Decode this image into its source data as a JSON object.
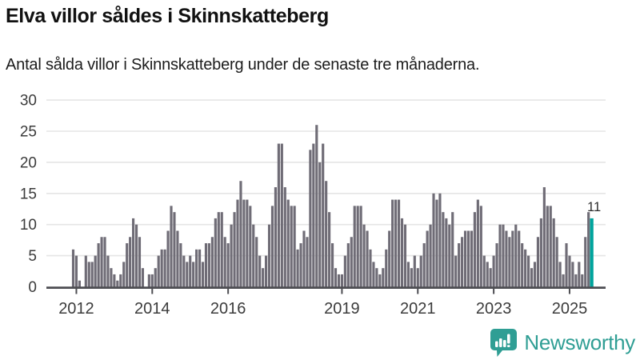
{
  "header": {
    "title": "Elva villor såldes i Skinnskatteberg",
    "subtitle": "Antal sålda villor i Skinnskatteberg under de senaste tre månaderna."
  },
  "annotation": {
    "label": "11"
  },
  "branding": {
    "logo_text": "Newsworthy",
    "logo_icon": "bar-chart-speech-bubble-icon"
  },
  "colors": {
    "background": "#ffffff",
    "bar": "#6f6c76",
    "highlight": "#00a49d",
    "axis": "#4d4d52",
    "grid": "#e5e5e5",
    "tick_text": "#3b3b3b",
    "annotation_text": "#2b2b2b",
    "logo": "#2f9e94"
  },
  "chart_data": {
    "type": "bar",
    "title": "Elva villor såldes i Skinnskatteberg",
    "subtitle": "Antal sålda villor i Skinnskatteberg under de senaste tre månaderna.",
    "unit": "sålda villor (rullande tre månader)",
    "frequency": "monthly",
    "start": "2011-12",
    "xlabel": "",
    "ylabel": "",
    "ylim": [
      0,
      30
    ],
    "y_ticks": [
      0,
      5,
      10,
      15,
      20,
      25,
      30
    ],
    "x_tick_years": [
      2012,
      2014,
      2016,
      2019,
      2021,
      2023,
      2025
    ],
    "grid": true,
    "legend": false,
    "highlight_last": true,
    "last_value_label": "11",
    "values": [
      6,
      5,
      1,
      0,
      5,
      4,
      4,
      5,
      7,
      8,
      8,
      5,
      3,
      2,
      1,
      2,
      4,
      7,
      8,
      11,
      10,
      8,
      3,
      0,
      2,
      2,
      3,
      5,
      6,
      6,
      9,
      13,
      12,
      9,
      7,
      5,
      4,
      5,
      4,
      6,
      6,
      4,
      7,
      7,
      8,
      11,
      12,
      12,
      8,
      7,
      10,
      12,
      14,
      17,
      14,
      14,
      13,
      10,
      8,
      5,
      3,
      5,
      10,
      13,
      16,
      23,
      23,
      16,
      14,
      13,
      13,
      6,
      7,
      9,
      8,
      22,
      23,
      26,
      20,
      23,
      17,
      12,
      7,
      3,
      2,
      2,
      5,
      7,
      8,
      13,
      13,
      13,
      10,
      9,
      6,
      4,
      3,
      2,
      3,
      6,
      9,
      14,
      14,
      14,
      11,
      10,
      4,
      3,
      5,
      3,
      5,
      7,
      9,
      10,
      15,
      14,
      15,
      12,
      11,
      10,
      12,
      5,
      7,
      8,
      9,
      9,
      9,
      12,
      14,
      13,
      5,
      4,
      3,
      5,
      7,
      10,
      10,
      9,
      8,
      9,
      10,
      9,
      7,
      6,
      5,
      3,
      4,
      8,
      11,
      16,
      13,
      13,
      11,
      8,
      4,
      2,
      7,
      5,
      4,
      2,
      4,
      2,
      8,
      12,
      11
    ]
  }
}
